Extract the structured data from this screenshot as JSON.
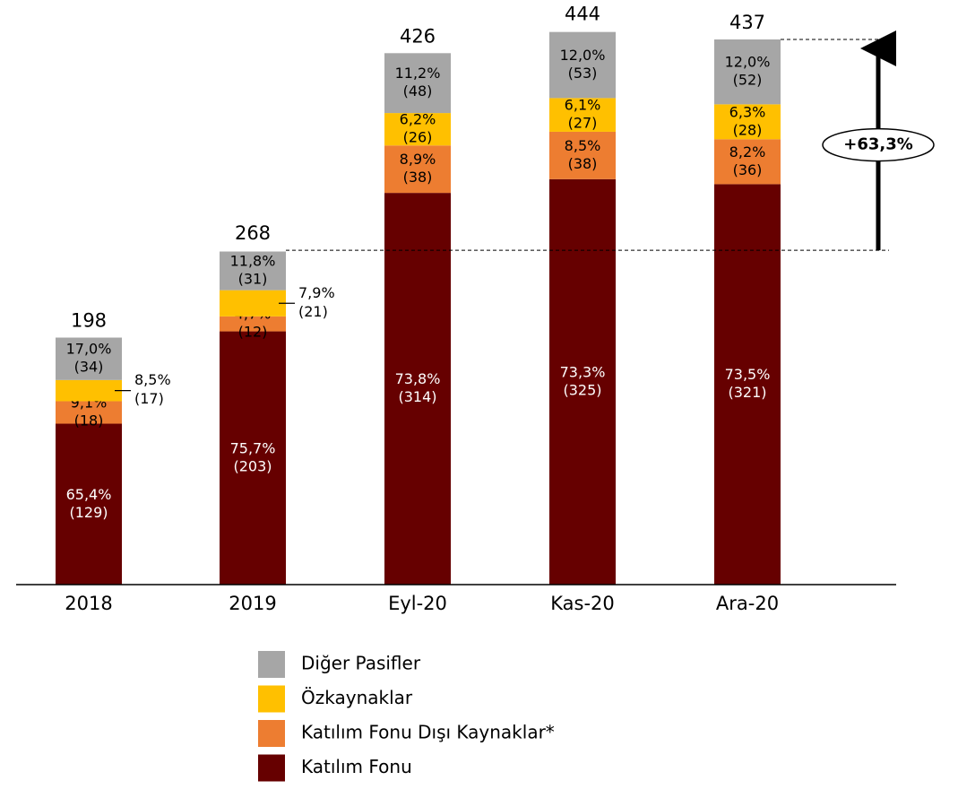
{
  "chart_data": {
    "type": "stacked_bar",
    "categories": [
      "2018",
      "2019",
      "Eyl-20",
      "Kas-20",
      "Ara-20"
    ],
    "series": [
      {
        "name": "Katılım Fonu",
        "color": "#660000",
        "values": [
          129,
          203,
          314,
          325,
          321
        ],
        "value_labels": [
          "(129)",
          "(203)",
          "(314)",
          "(325)",
          "(321)"
        ],
        "share_labels": [
          "65,4%",
          "75,7%",
          "73,8%",
          "73,3%",
          "73,5%"
        ]
      },
      {
        "name": "Katılım Fonu Dışı Kaynaklar*",
        "color": "#ed7d31",
        "values": [
          18,
          12,
          38,
          38,
          36
        ],
        "value_labels": [
          "(18)",
          "(12)",
          "(38)",
          "(38)",
          "(36)"
        ],
        "share_labels": [
          "9,1%",
          "4,7%",
          "8,9%",
          "8,5%",
          "8,2%"
        ]
      },
      {
        "name": "Özkaynaklar",
        "color": "#ffc000",
        "values": [
          17,
          21,
          26,
          27,
          28
        ],
        "value_labels": [
          "(17)",
          "(21)",
          "(26)",
          "(27)",
          "(28)"
        ],
        "share_labels": [
          "8,5%",
          "7,9%",
          "6,2%",
          "6,1%",
          "6,3%"
        ]
      },
      {
        "name": "Diğer Pasifler",
        "color": "#a6a6a6",
        "values": [
          34,
          31,
          48,
          53,
          52
        ],
        "value_labels": [
          "(34)",
          "(31)",
          "(48)",
          "(53)",
          "(52)"
        ],
        "share_labels": [
          "17,0%",
          "11,8%",
          "11,2%",
          "12,0%",
          "12,0%"
        ]
      }
    ],
    "totals": [
      198,
      268,
      426,
      444,
      437
    ],
    "annotation": "+63,3%",
    "ylim": [
      0,
      460
    ]
  }
}
